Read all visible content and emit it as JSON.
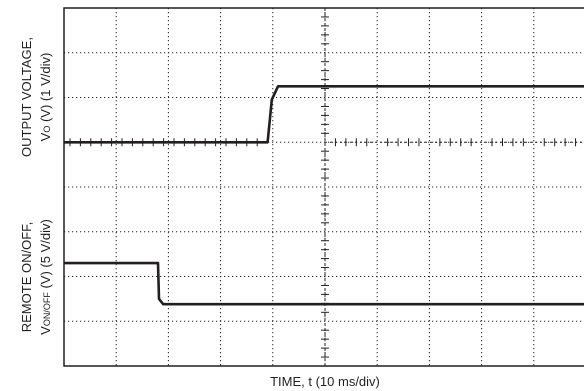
{
  "chart_data": {
    "type": "line",
    "divisions": {
      "x": 10,
      "y": 8
    },
    "grid": true,
    "xlabel": "TIME, t (10 ms/div)",
    "ylabel_top": {
      "line1": "OUTPUT VOLTAGE,",
      "line2_sym": "V",
      "line2_sub": "O",
      "line2_rest": " (V) (1 V/div)"
    },
    "ylabel_bottom": {
      "line1": "REMOTE ON/OFF,",
      "line2_sym": "V",
      "line2_sub": "ON/OFF",
      "line2_rest": " (V) (5 V/div)"
    },
    "series": [
      {
        "x": [
          0,
          3.9,
          3.98,
          4.1,
          10
        ],
        "y": [
          5.0,
          5.0,
          5.95,
          6.25,
          6.25
        ]
      },
      {
        "x": [
          0,
          1.8,
          1.82,
          1.9,
          10
        ],
        "y": [
          2.3,
          2.3,
          1.5,
          1.38,
          1.38
        ]
      }
    ],
    "trace_color": "#231f20"
  }
}
